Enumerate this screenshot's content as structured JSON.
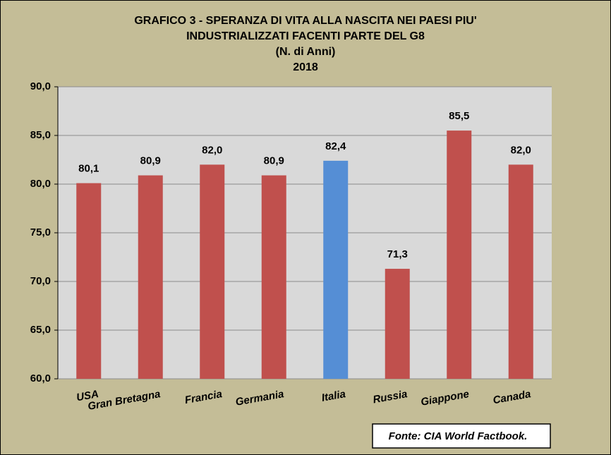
{
  "chart_data": {
    "type": "bar",
    "title": [
      "GRAFICO 3 - SPERANZA DI VITA ALLA NASCITA NEI PAESI PIU'",
      "INDUSTRIALIZZATI FACENTI PARTE DEL G8",
      "(N. di Anni)",
      "2018"
    ],
    "categories": [
      "USA",
      "Gran Bretagna",
      "Francia",
      "Germania",
      "Italia",
      "Russia",
      "Giappone",
      "Canada"
    ],
    "values": [
      80.1,
      80.9,
      82.0,
      80.9,
      82.4,
      71.3,
      85.5,
      82.0
    ],
    "value_labels": [
      "80,1",
      "80,9",
      "82,0",
      "80,9",
      "82,4",
      "71,3",
      "85,5",
      "82,0"
    ],
    "colors": [
      "#c0504d",
      "#c0504d",
      "#c0504d",
      "#c0504d",
      "#558ed5",
      "#c0504d",
      "#c0504d",
      "#c0504d"
    ],
    "ylim": [
      60,
      90
    ],
    "yticks": [
      {
        "value": 60,
        "label": "60,0"
      },
      {
        "value": 65,
        "label": "65,0"
      },
      {
        "value": 70,
        "label": "70,0"
      },
      {
        "value": 75,
        "label": "75,0"
      },
      {
        "value": 80,
        "label": "80,0"
      },
      {
        "value": 85,
        "label": "85,0"
      },
      {
        "value": 90,
        "label": "90,0"
      }
    ],
    "grid": true,
    "source": "Fonte: CIA World Factbook."
  }
}
